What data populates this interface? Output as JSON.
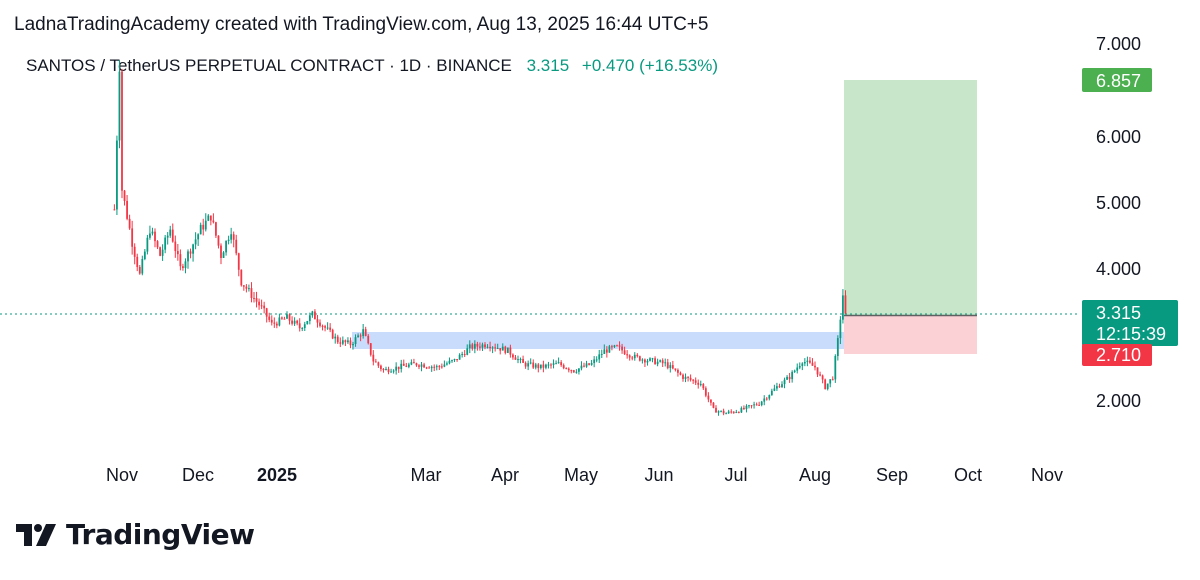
{
  "credit": "LadnaTradingAcademy created with TradingView.com, Aug 13, 2025 16:44 UTC+5",
  "symbol_line": {
    "symbol": "SANTOS / TetherUS PERPETUAL CONTRACT · 1D · BINANCE",
    "price": "3.315",
    "change": "+0.470 (+16.53%)"
  },
  "price_tags": {
    "target": "6.857",
    "current": "3.315",
    "countdown": "12:15:39",
    "stop": "2.710"
  },
  "logo": {
    "text": "TradingView"
  },
  "colors": {
    "up": "#089981",
    "down": "#f23645",
    "target_zone": "#c8e6c9",
    "stop_zone": "#fbd1d6",
    "support_zone": "#c9dcfb",
    "target_tag": "#4caf50",
    "current_tag": "#089981",
    "stop_tag": "#f23645"
  },
  "chart_data": {
    "type": "candlestick",
    "y_axis": {
      "ticks": [
        "2.000",
        "4.000",
        "5.000",
        "6.000",
        "7.000"
      ],
      "tick_values": [
        2,
        4,
        5,
        6,
        7
      ],
      "ylim": [
        1.55,
        7.2
      ],
      "position": "right"
    },
    "x_axis": {
      "labels": [
        "Nov",
        "Dec",
        "2025",
        "Mar",
        "Apr",
        "May",
        "Jun",
        "Jul",
        "Aug",
        "Sep",
        "Oct",
        "Nov"
      ]
    },
    "grid": false,
    "last_price": 3.315,
    "support_zone": {
      "low": 2.85,
      "high": 3.1,
      "from": "2025-01-14",
      "to": "2025-08-20"
    },
    "position": {
      "entry": 3.315,
      "target": 6.857,
      "stop": 2.71,
      "from": "2025-08-13",
      "to": "2025-10-01"
    },
    "trend_points": [
      [
        "2024-10-29",
        4.9
      ],
      [
        "2024-10-31",
        7.1
      ],
      [
        "2024-11-01",
        5.2
      ],
      [
        "2024-11-05",
        4.4
      ],
      [
        "2024-11-08",
        3.9
      ],
      [
        "2024-11-12",
        4.6
      ],
      [
        "2024-11-16",
        4.2
      ],
      [
        "2024-11-20",
        4.6
      ],
      [
        "2024-11-24",
        4.0
      ],
      [
        "2024-11-28",
        4.3
      ],
      [
        "2024-12-02",
        4.6
      ],
      [
        "2024-12-06",
        4.8
      ],
      [
        "2024-12-10",
        4.2
      ],
      [
        "2024-12-14",
        4.6
      ],
      [
        "2024-12-18",
        3.8
      ],
      [
        "2024-12-22",
        3.6
      ],
      [
        "2024-12-26",
        3.4
      ],
      [
        "2024-12-30",
        3.15
      ],
      [
        "2025-01-05",
        3.25
      ],
      [
        "2025-01-10",
        3.1
      ],
      [
        "2025-01-15",
        3.3
      ],
      [
        "2025-01-20",
        3.1
      ],
      [
        "2025-01-25",
        2.9
      ],
      [
        "2025-01-30",
        2.85
      ],
      [
        "2025-02-04",
        3.05
      ],
      [
        "2025-02-08",
        2.6
      ],
      [
        "2025-02-12",
        2.45
      ],
      [
        "2025-02-18",
        2.5
      ],
      [
        "2025-02-25",
        2.55
      ],
      [
        "2025-03-05",
        2.5
      ],
      [
        "2025-03-12",
        2.6
      ],
      [
        "2025-03-18",
        2.8
      ],
      [
        "2025-03-25",
        2.85
      ],
      [
        "2025-04-02",
        2.75
      ],
      [
        "2025-04-08",
        2.55
      ],
      [
        "2025-04-15",
        2.5
      ],
      [
        "2025-04-22",
        2.55
      ],
      [
        "2025-04-28",
        2.45
      ],
      [
        "2025-05-05",
        2.55
      ],
      [
        "2025-05-10",
        2.75
      ],
      [
        "2025-05-15",
        2.8
      ],
      [
        "2025-05-22",
        2.65
      ],
      [
        "2025-05-28",
        2.6
      ],
      [
        "2025-06-03",
        2.55
      ],
      [
        "2025-06-10",
        2.35
      ],
      [
        "2025-06-17",
        2.25
      ],
      [
        "2025-06-22",
        1.85
      ],
      [
        "2025-06-27",
        1.8
      ],
      [
        "2025-07-03",
        1.85
      ],
      [
        "2025-07-10",
        1.95
      ],
      [
        "2025-07-17",
        2.2
      ],
      [
        "2025-07-22",
        2.35
      ],
      [
        "2025-07-27",
        2.6
      ],
      [
        "2025-08-01",
        2.5
      ],
      [
        "2025-08-05",
        2.2
      ],
      [
        "2025-08-08",
        2.35
      ],
      [
        "2025-08-10",
        2.9
      ],
      [
        "2025-08-12",
        3.6
      ],
      [
        "2025-08-13",
        3.315
      ]
    ]
  }
}
